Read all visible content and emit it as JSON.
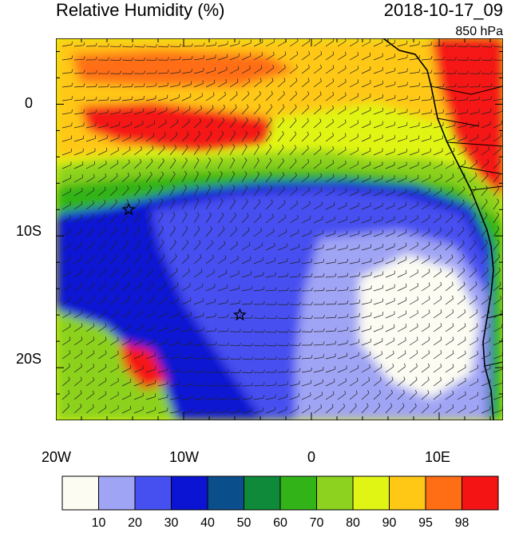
{
  "header": {
    "title": "Relative Humidity (%)",
    "datetime": "2018-10-17_09",
    "level": "850 hPa"
  },
  "map": {
    "x_ticks": [
      "20W",
      "10W",
      "0",
      "10E"
    ],
    "y_ticks": [
      "0",
      "10S",
      "20S"
    ],
    "lon_range": [
      -20,
      15
    ],
    "lat_range": [
      -24,
      5
    ],
    "markers": [
      {
        "symbol": "star",
        "lon": -14.3,
        "lat": -8.0
      },
      {
        "symbol": "star",
        "lon": -5.6,
        "lat": -16.0
      }
    ]
  },
  "colorbar": {
    "labels": [
      "10",
      "20",
      "30",
      "40",
      "50",
      "60",
      "70",
      "80",
      "90",
      "95",
      "98"
    ],
    "colors": [
      "#fcfcf2",
      "#a0a4f4",
      "#4650f0",
      "#0a14d2",
      "#0a4e8c",
      "#0e8a3a",
      "#32b419",
      "#8cd21e",
      "#e1f514",
      "#ffc814",
      "#ff6e14",
      "#f51414"
    ]
  }
}
